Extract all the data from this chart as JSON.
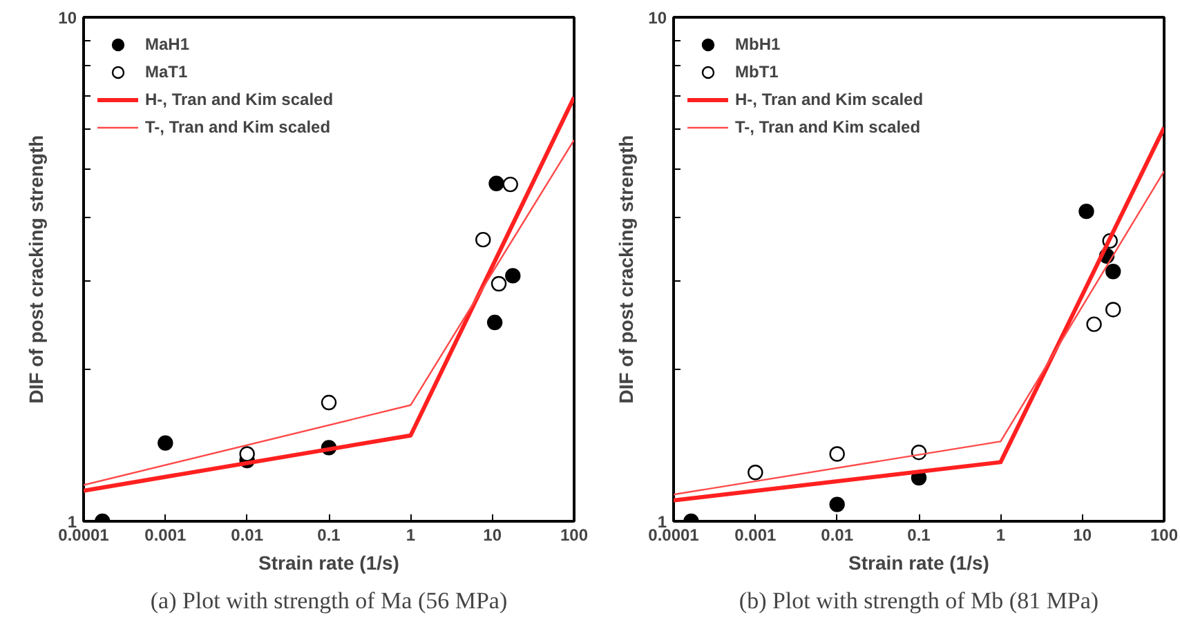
{
  "chart_data": [
    {
      "type": "scatter",
      "xlabel": "Strain rate (1/s)",
      "ylabel": "DIF of post cracking strength",
      "log": "xy",
      "grid": false,
      "legend": "top left",
      "xlim": [
        0.0001,
        100
      ],
      "xticks": [
        0.0001,
        0.001,
        0.01,
        0.1,
        1,
        10,
        100
      ],
      "ylim": [
        1,
        10
      ],
      "yticks": [
        1,
        {
          "value": 2,
          "label": null
        },
        {
          "value": 3,
          "label": null
        },
        {
          "value": 4,
          "label": null
        },
        {
          "value": 5,
          "label": null
        },
        {
          "value": 6,
          "label": null
        },
        {
          "value": 7,
          "label": null
        },
        {
          "value": 8,
          "label": null
        },
        {
          "value": 9,
          "label": null
        },
        10
      ],
      "annotations": [
        "(a) Plot with strength of Ma (56 MPa)"
      ],
      "series": [
        {
          "name": "MaH1",
          "marker": "circle",
          "color": "#000000",
          "x": [
            0.00017,
            0.001,
            0.01,
            0.1,
            10.7,
            11.2,
            17.8
          ],
          "values": [
            1.0,
            1.43,
            1.32,
            1.4,
            2.48,
            4.68,
            3.07
          ]
        },
        {
          "name": "MaT1",
          "marker": "circle",
          "color": "#000000",
          "x": [
            0.01,
            0.1,
            7.7,
            12,
            16.6
          ],
          "values": [
            1.36,
            1.72,
            3.62,
            2.96,
            4.66
          ]
        },
        {
          "name": "H-, Tran and Kim scaled",
          "type": "line",
          "color": "#ff2020",
          "x": [
            0.0001,
            1,
            100
          ],
          "values": [
            1.15,
            1.48,
            6.94
          ]
        },
        {
          "name": "T-, Tran and Kim scaled",
          "type": "line",
          "color": "#ff4a4a",
          "x": [
            0.0001,
            1,
            100
          ],
          "values": [
            1.18,
            1.7,
            5.71
          ]
        }
      ]
    },
    {
      "type": "scatter",
      "xlabel": "Strain rate (1/s)",
      "ylabel": "DIF of post cracking strength",
      "log": "xy",
      "grid": false,
      "legend": "top left",
      "xlim": [
        0.0001,
        100
      ],
      "xticks": [
        0.0001,
        0.001,
        0.01,
        0.1,
        1,
        10,
        100
      ],
      "ylim": [
        1,
        10
      ],
      "yticks": [
        1,
        {
          "value": 2,
          "label": null
        },
        {
          "value": 3,
          "label": null
        },
        {
          "value": 4,
          "label": null
        },
        {
          "value": 5,
          "label": null
        },
        {
          "value": 6,
          "label": null
        },
        {
          "value": 7,
          "label": null
        },
        {
          "value": 8,
          "label": null
        },
        {
          "value": 9,
          "label": null
        },
        10
      ],
      "annotations": [
        "(b) Plot with strength of Mb (81 MPa)"
      ],
      "series": [
        {
          "name": "MbH1",
          "marker": "circle",
          "color": "#000000",
          "x": [
            0.000164,
            0.01,
            0.1,
            11.2,
            19.9,
            23.8
          ],
          "values": [
            1.0,
            1.08,
            1.22,
            4.12,
            3.36,
            3.13
          ]
        },
        {
          "name": "MbT1",
          "marker": "circle",
          "color": "#000000",
          "x": [
            0.001,
            0.01,
            0.1,
            13.9,
            21.8,
            23.8
          ],
          "values": [
            1.25,
            1.36,
            1.37,
            2.46,
            3.6,
            2.63
          ]
        },
        {
          "name": "H-, Tran and Kim scaled",
          "type": "line",
          "color": "#ff2020",
          "x": [
            0.0001,
            1,
            100
          ],
          "values": [
            1.1,
            1.31,
            6.04
          ]
        },
        {
          "name": "T-, Tran and Kim scaled",
          "type": "line",
          "color": "#ff4a4a",
          "x": [
            0.0001,
            1,
            100
          ],
          "values": [
            1.13,
            1.44,
            4.95
          ]
        }
      ]
    }
  ]
}
